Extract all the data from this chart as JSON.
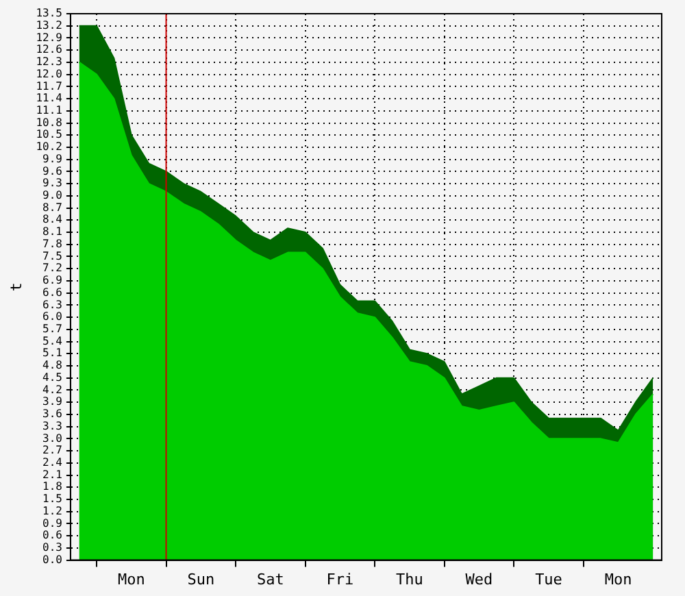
{
  "chart_data": {
    "type": "area",
    "ylabel": "t",
    "categories": [
      null,
      null,
      null,
      "Mon",
      null,
      null,
      null,
      "Sun",
      null,
      null,
      null,
      "Sat",
      null,
      null,
      null,
      "Fri",
      null,
      null,
      null,
      "Thu",
      null,
      null,
      null,
      "Wed",
      null,
      null,
      null,
      "Tue",
      null,
      null,
      null,
      "Mon",
      null,
      null
    ],
    "series": [
      {
        "color": "#006600",
        "values": [
          13.2,
          13.2,
          12.4,
          10.5,
          9.8,
          9.6,
          9.3,
          9.1,
          8.8,
          8.5,
          8.1,
          7.9,
          8.2,
          8.1,
          7.7,
          6.8,
          6.4,
          6.4,
          5.9,
          5.2,
          5.1,
          4.9,
          4.1,
          4.3,
          4.5,
          4.5,
          3.9,
          3.5,
          3.5,
          3.5,
          3.5,
          3.2,
          3.9,
          4.5
        ]
      },
      {
        "color": "#00cc00",
        "values": [
          12.3,
          12.0,
          11.4,
          10.0,
          9.3,
          9.1,
          8.8,
          8.6,
          8.3,
          7.9,
          7.6,
          7.4,
          7.6,
          7.6,
          7.2,
          6.5,
          6.1,
          6.0,
          5.5,
          4.9,
          4.8,
          4.5,
          3.8,
          3.7,
          3.8,
          3.9,
          3.4,
          3.0,
          3.0,
          3.0,
          3.0,
          2.9,
          3.6,
          4.1
        ]
      }
    ],
    "ylim": [
      0,
      13.5
    ],
    "yticks": [
      {
        "value": 0,
        "label": "0.0"
      },
      {
        "value": 0.3,
        "label": "0.3"
      },
      {
        "value": 0.6,
        "label": "0.6"
      },
      {
        "value": 0.9,
        "label": "0.9"
      },
      {
        "value": 1.2,
        "label": "1.2"
      },
      {
        "value": 1.5,
        "label": "1.5"
      },
      {
        "value": 1.8,
        "label": "1.8"
      },
      {
        "value": 2.1,
        "label": "2.1"
      },
      {
        "value": 2.4,
        "label": "2.4"
      },
      {
        "value": 2.7,
        "label": "2.7"
      },
      {
        "value": 3,
        "label": "3.0"
      },
      {
        "value": 3.3,
        "label": "3.3"
      },
      {
        "value": 3.6,
        "label": "3.6"
      },
      {
        "value": 3.9,
        "label": "3.9"
      },
      {
        "value": 4.2,
        "label": "4.2"
      },
      {
        "value": 4.5,
        "label": "4.5"
      },
      {
        "value": 4.8,
        "label": "4.8"
      },
      {
        "value": 5.1,
        "label": "5.1"
      },
      {
        "value": 5.4,
        "label": "5.4"
      },
      {
        "value": 5.7,
        "label": "5.7"
      },
      {
        "value": 6,
        "label": "6.0"
      },
      {
        "value": 6.3,
        "label": "6.3"
      },
      {
        "value": 6.6,
        "label": "6.6"
      },
      {
        "value": 6.9,
        "label": "6.9"
      },
      {
        "value": 7.2,
        "label": "7.2"
      },
      {
        "value": 7.5,
        "label": "7.5"
      },
      {
        "value": 7.8,
        "label": "7.8"
      },
      {
        "value": 8.1,
        "label": "8.1"
      },
      {
        "value": 8.4,
        "label": "8.4"
      },
      {
        "value": 8.7,
        "label": "8.7"
      },
      {
        "value": 9,
        "label": "9.0"
      },
      {
        "value": 9.3,
        "label": "9.3"
      },
      {
        "value": 9.6,
        "label": "9.6"
      },
      {
        "value": 9.9,
        "label": "9.9"
      },
      {
        "value": 10.2,
        "label": "10.2"
      },
      {
        "value": 10.5,
        "label": "10.5"
      },
      {
        "value": 10.8,
        "label": "10.8"
      },
      {
        "value": 11.1,
        "label": "11.1"
      },
      {
        "value": 11.4,
        "label": "11.4"
      },
      {
        "value": 11.7,
        "label": "11.7"
      },
      {
        "value": 12,
        "label": "12.0"
      },
      {
        "value": 12.3,
        "label": "12.3"
      },
      {
        "value": 12.6,
        "label": "12.6"
      },
      {
        "value": 12.9,
        "label": "12.9"
      },
      {
        "value": 13.2,
        "label": "13.2"
      },
      {
        "value": 13.5,
        "label": "13.5"
      }
    ],
    "grid": true
  }
}
